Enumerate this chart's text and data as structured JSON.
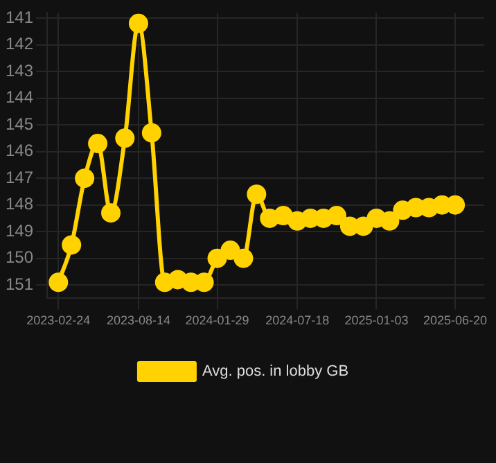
{
  "chart_data": {
    "type": "line",
    "x": [
      "2023-02-24",
      "2023-03-24",
      "2023-04-21",
      "2023-05-19",
      "2023-06-16",
      "2023-07-16",
      "2023-08-14",
      "2023-09-11",
      "2023-10-09",
      "2023-11-06",
      "2023-12-04",
      "2024-01-01",
      "2024-01-29",
      "2024-02-26",
      "2024-03-25",
      "2024-04-22",
      "2024-05-20",
      "2024-06-18",
      "2024-07-18",
      "2024-08-15",
      "2024-09-12",
      "2024-10-10",
      "2024-11-07",
      "2024-12-06",
      "2025-01-03",
      "2025-01-31",
      "2025-02-28",
      "2025-03-28",
      "2025-04-25",
      "2025-05-23",
      "2025-06-20"
    ],
    "series": [
      {
        "name": "Avg. pos. in lobby GB",
        "color": "#ffd200",
        "values": [
          150.9,
          149.5,
          147.0,
          145.7,
          148.3,
          145.5,
          141.2,
          145.3,
          150.9,
          150.8,
          150.9,
          150.9,
          150.0,
          149.7,
          150.0,
          147.6,
          148.5,
          148.4,
          148.6,
          148.5,
          148.5,
          148.4,
          148.8,
          148.8,
          148.5,
          148.6,
          148.2,
          148.1,
          148.1,
          148.0,
          148.0
        ]
      }
    ],
    "xlim": [
      "2023-01-31",
      "2025-08-21"
    ],
    "xticks": [
      "2023-02-24",
      "2023-08-14",
      "2024-01-29",
      "2024-07-18",
      "2025-01-03",
      "2025-06-20"
    ],
    "ylim": [
      151.5,
      140.8
    ],
    "yticks": [
      141,
      142,
      143,
      144,
      145,
      146,
      147,
      148,
      149,
      150,
      151
    ],
    "grid": true,
    "legend": "bottom",
    "marker": "circle",
    "line_style": "solid"
  }
}
